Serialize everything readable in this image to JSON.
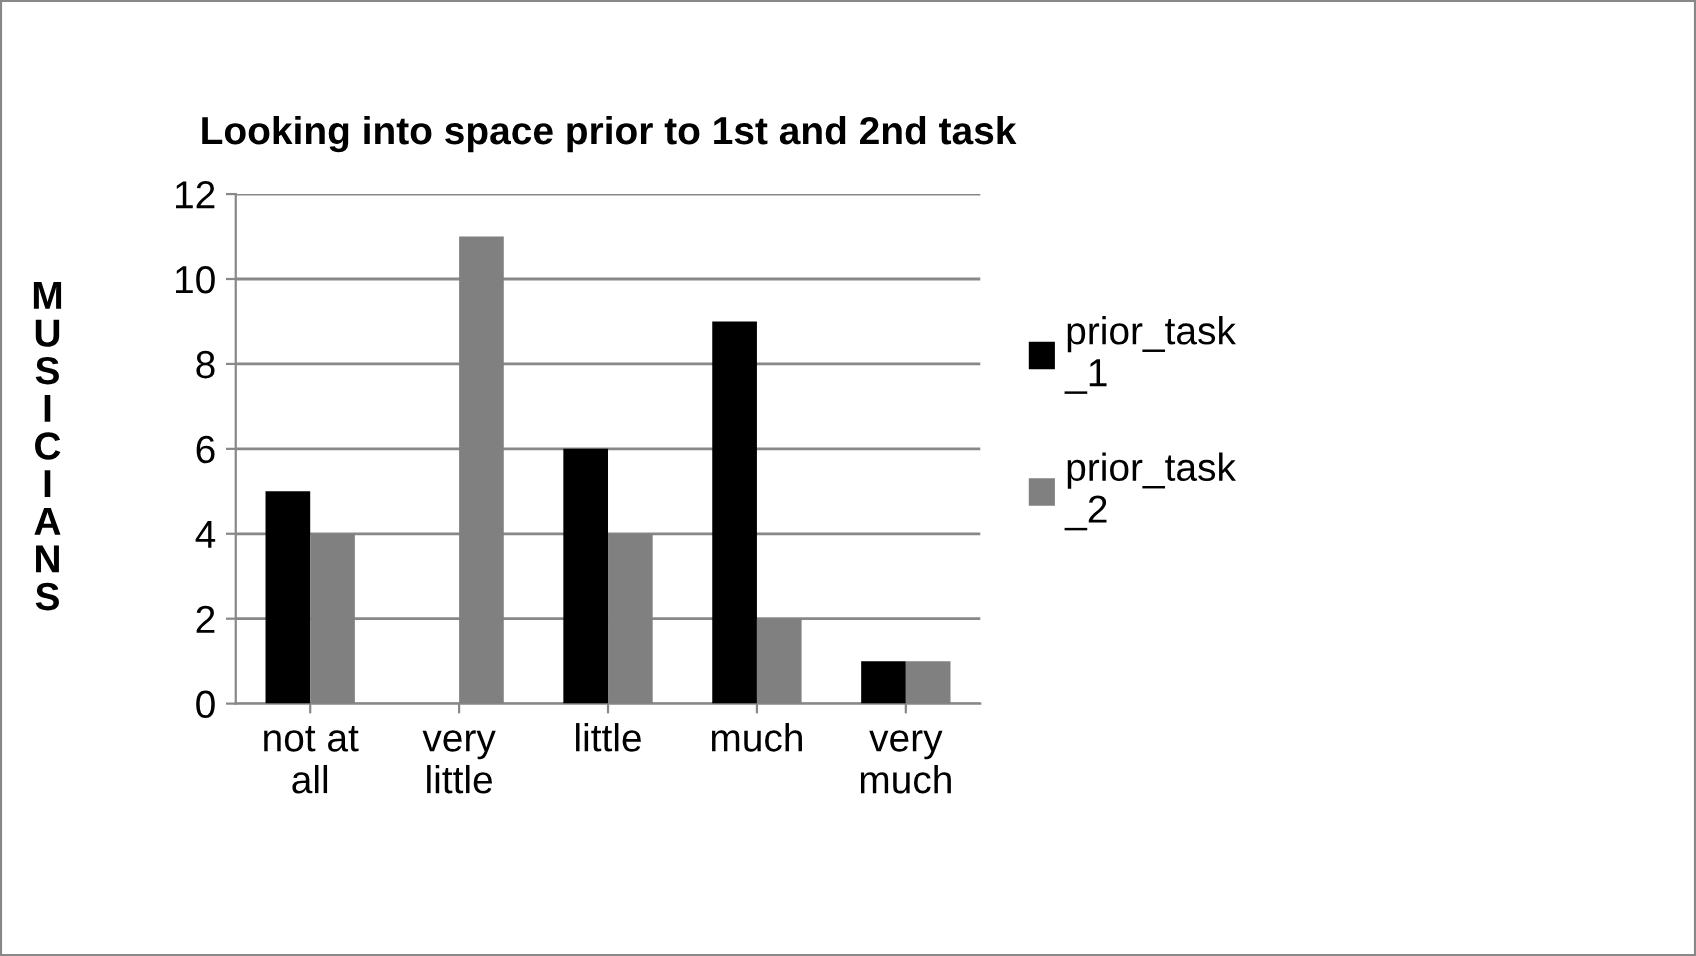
{
  "chart_data": {
    "type": "bar",
    "title": "Looking into space prior to 1st and 2nd task",
    "ylabel": "MUSICIANS",
    "categories": [
      "not at all",
      "very little",
      "little",
      "much",
      "very much"
    ],
    "series": [
      {
        "name": "prior_task_1",
        "color": "#000000",
        "values": [
          5,
          0,
          6,
          9,
          1
        ]
      },
      {
        "name": "prior_task_2",
        "color": "#808080",
        "values": [
          4,
          11,
          4,
          2,
          1
        ]
      }
    ],
    "ylim": [
      0,
      12
    ],
    "yticks": [
      0,
      2,
      4,
      6,
      8,
      10,
      12
    ],
    "grid": "y",
    "legend": "right"
  }
}
